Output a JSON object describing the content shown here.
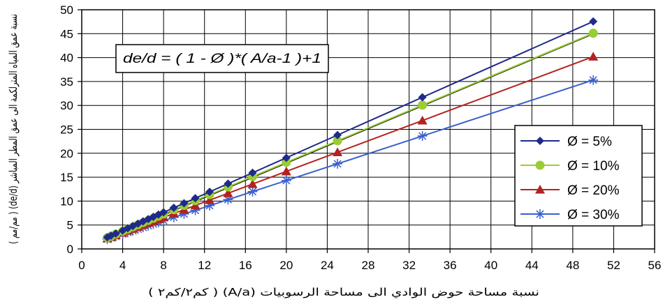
{
  "chart_data": {
    "type": "line",
    "xlabel": "نسبة مساحة حوض الوادي الى مساحة الرسوبيات (A/a) ( كم٢/كم٢ )",
    "ylabel": "نسبة عمق المياه المترلكمة الى عمق المطر المباشر (de/d) ( مم/مم )",
    "annotation": "de/d = ( 1 - Ø )*( A/a-1 )+1",
    "xlim": [
      0,
      56
    ],
    "ylim": [
      0,
      50
    ],
    "x_ticks": [
      0,
      4,
      8,
      12,
      16,
      20,
      24,
      28,
      32,
      36,
      40,
      44,
      48,
      52,
      56
    ],
    "y_ticks": [
      0,
      5,
      10,
      15,
      20,
      25,
      30,
      35,
      40,
      45,
      50
    ],
    "grid": true,
    "legend_position": "right",
    "x": [
      2.5,
      2.86,
      3.33,
      4,
      4.5,
      5,
      5.5,
      6,
      6.5,
      7,
      7.5,
      8,
      9,
      10,
      11.1,
      12.5,
      14.3,
      16.7,
      20,
      25,
      33.3,
      50
    ],
    "series": [
      {
        "name": "Ø = 5%",
        "color": "#1f2a8c",
        "marker": "diamond",
        "values": [
          2.43,
          2.77,
          3.21,
          3.85,
          4.33,
          4.8,
          5.28,
          5.75,
          6.23,
          6.7,
          7.18,
          7.65,
          8.6,
          9.55,
          10.6,
          11.93,
          13.64,
          15.92,
          19.05,
          23.8,
          31.7,
          47.55
        ]
      },
      {
        "name": "Ø = 10%",
        "color": "#9acd32",
        "marker": "circle",
        "values": [
          2.35,
          2.67,
          3.1,
          3.7,
          4.15,
          4.6,
          5.05,
          5.5,
          5.95,
          6.4,
          6.85,
          7.3,
          8.2,
          9.1,
          10.09,
          11.35,
          12.97,
          15.13,
          18.1,
          22.6,
          30.07,
          45.1
        ]
      },
      {
        "name": "Ø = 20%",
        "color": "#b22222",
        "marker": "triangle",
        "values": [
          2.2,
          2.49,
          2.86,
          3.4,
          3.8,
          4.2,
          4.6,
          5.0,
          5.4,
          5.8,
          6.2,
          6.6,
          7.4,
          8.2,
          9.08,
          10.2,
          11.64,
          13.56,
          16.2,
          20.2,
          26.84,
          40.2
        ]
      },
      {
        "name": "Ø = 30%",
        "color": "#3a5fcd",
        "marker": "asterisk",
        "values": [
          2.05,
          2.3,
          2.63,
          3.1,
          3.45,
          3.8,
          4.15,
          4.5,
          4.85,
          5.2,
          5.55,
          5.9,
          6.6,
          7.3,
          8.07,
          9.05,
          10.31,
          11.99,
          14.3,
          17.8,
          23.61,
          35.3
        ]
      }
    ],
    "fit_line": {
      "color": "#000000",
      "x": [
        2.5,
        50
      ],
      "values": [
        2.2,
        45
      ]
    }
  }
}
